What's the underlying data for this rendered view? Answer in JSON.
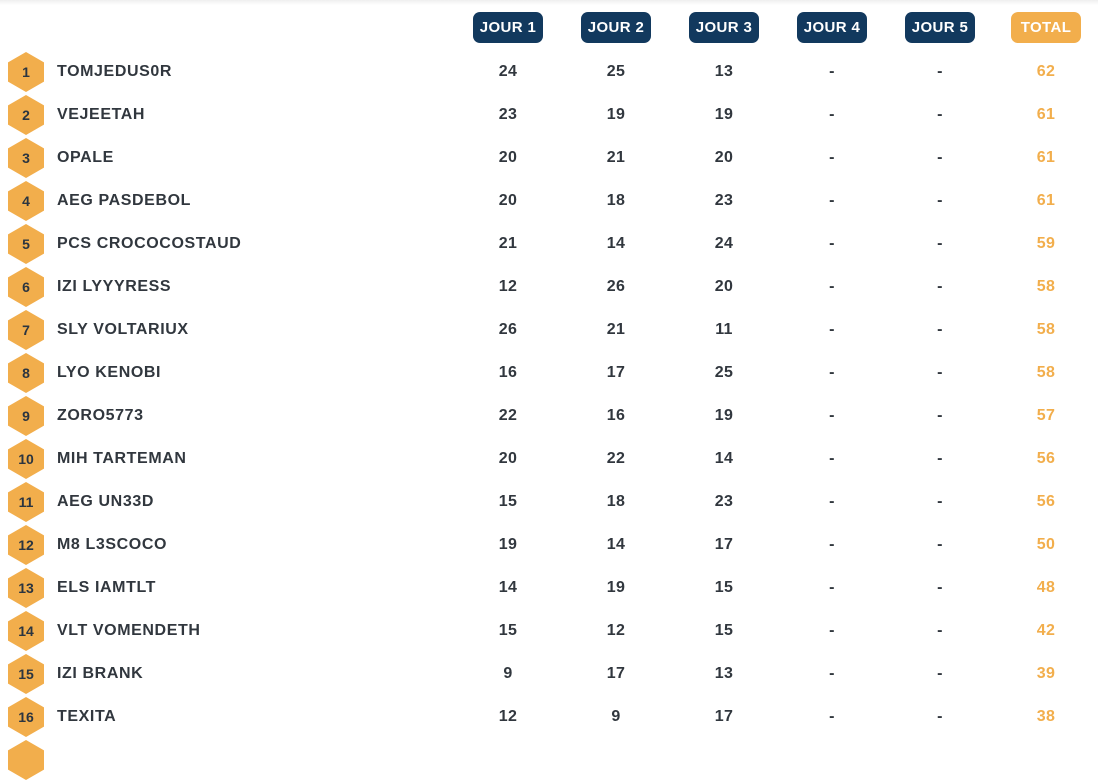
{
  "colors": {
    "navy": "#12395E",
    "orange": "#F2AE4C",
    "text_dark": "#31373E",
    "background": "#FFFFFF"
  },
  "header": {
    "columns": [
      "JOUR 1",
      "JOUR 2",
      "JOUR 3",
      "JOUR 4",
      "JOUR 5",
      "TOTAL"
    ]
  },
  "leaderboard": {
    "rows": [
      {
        "rank": "1",
        "name": "TOMJEDUS0R",
        "scores": [
          "24",
          "25",
          "13",
          "-",
          "-"
        ],
        "total": "62"
      },
      {
        "rank": "2",
        "name": "VEJEETAH",
        "scores": [
          "23",
          "19",
          "19",
          "-",
          "-"
        ],
        "total": "61"
      },
      {
        "rank": "3",
        "name": "OPALE",
        "scores": [
          "20",
          "21",
          "20",
          "-",
          "-"
        ],
        "total": "61"
      },
      {
        "rank": "4",
        "name": "AEG PASDEBOL",
        "scores": [
          "20",
          "18",
          "23",
          "-",
          "-"
        ],
        "total": "61"
      },
      {
        "rank": "5",
        "name": "PCS CROCOCOSTAUD",
        "scores": [
          "21",
          "14",
          "24",
          "-",
          "-"
        ],
        "total": "59"
      },
      {
        "rank": "6",
        "name": "IZI LYYYRESS",
        "scores": [
          "12",
          "26",
          "20",
          "-",
          "-"
        ],
        "total": "58"
      },
      {
        "rank": "7",
        "name": "SLY VOLTARIUX",
        "scores": [
          "26",
          "21",
          "11",
          "-",
          "-"
        ],
        "total": "58"
      },
      {
        "rank": "8",
        "name": "LYO KENOBI",
        "scores": [
          "16",
          "17",
          "25",
          "-",
          "-"
        ],
        "total": "58"
      },
      {
        "rank": "9",
        "name": "ZORO5773",
        "scores": [
          "22",
          "16",
          "19",
          "-",
          "-"
        ],
        "total": "57"
      },
      {
        "rank": "10",
        "name": "MIH TARTEMAN",
        "scores": [
          "20",
          "22",
          "14",
          "-",
          "-"
        ],
        "total": "56"
      },
      {
        "rank": "11",
        "name": "AEG UN33D",
        "scores": [
          "15",
          "18",
          "23",
          "-",
          "-"
        ],
        "total": "56"
      },
      {
        "rank": "12",
        "name": "M8 L3SCOCO",
        "scores": [
          "19",
          "14",
          "17",
          "-",
          "-"
        ],
        "total": "50"
      },
      {
        "rank": "13",
        "name": "ELS IAMTLT",
        "scores": [
          "14",
          "19",
          "15",
          "-",
          "-"
        ],
        "total": "48"
      },
      {
        "rank": "14",
        "name": "VLT VOMENDETH",
        "scores": [
          "15",
          "12",
          "15",
          "-",
          "-"
        ],
        "total": "42"
      },
      {
        "rank": "15",
        "name": "IZI BRANK",
        "scores": [
          "9",
          "17",
          "13",
          "-",
          "-"
        ],
        "total": "39"
      },
      {
        "rank": "16",
        "name": "TEXITA",
        "scores": [
          "12",
          "9",
          "17",
          "-",
          "-"
        ],
        "total": "38"
      }
    ],
    "next_partial_rank_visible": true
  }
}
